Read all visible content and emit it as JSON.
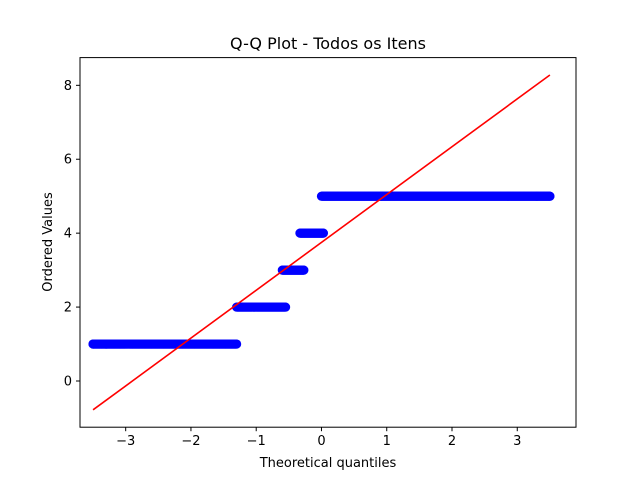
{
  "chart_data": {
    "type": "scatter",
    "title": "Q-Q Plot - Todos os Itens",
    "xlabel": "Theoretical quantiles",
    "ylabel": "Ordered Values",
    "xlim": [
      -3.7,
      3.9
    ],
    "ylim": [
      -1.25,
      8.75
    ],
    "xticks": [
      -3,
      -2,
      -1,
      0,
      1,
      2,
      3
    ],
    "xtick_labels": [
      "−3",
      "−2",
      "−1",
      "0",
      "1",
      "2",
      "3"
    ],
    "yticks": [
      0,
      2,
      4,
      6,
      8
    ],
    "ytick_labels": [
      "0",
      "2",
      "4",
      "6",
      "8"
    ],
    "grid": false,
    "point_color": "#0000ff",
    "line_color": "#ff0000",
    "series": [
      {
        "kind": "points",
        "groups": [
          {
            "value": 1,
            "quantile_range": [
              -3.5,
              -1.3
            ],
            "outliers": [
              -3.5,
              -3.3
            ]
          },
          {
            "value": 2,
            "quantile_range": [
              -1.3,
              -0.55
            ]
          },
          {
            "value": 3,
            "quantile_range": [
              -0.6,
              -0.27
            ]
          },
          {
            "value": 4,
            "quantile_range": [
              -0.33,
              0.03
            ]
          },
          {
            "value": 5,
            "quantile_range": [
              0.0,
              3.5
            ],
            "outliers": [
              3.3,
              3.5
            ]
          }
        ]
      },
      {
        "kind": "fit-line",
        "x": [
          -3.5,
          3.5
        ],
        "y": [
          -0.78,
          8.28
        ]
      }
    ]
  }
}
